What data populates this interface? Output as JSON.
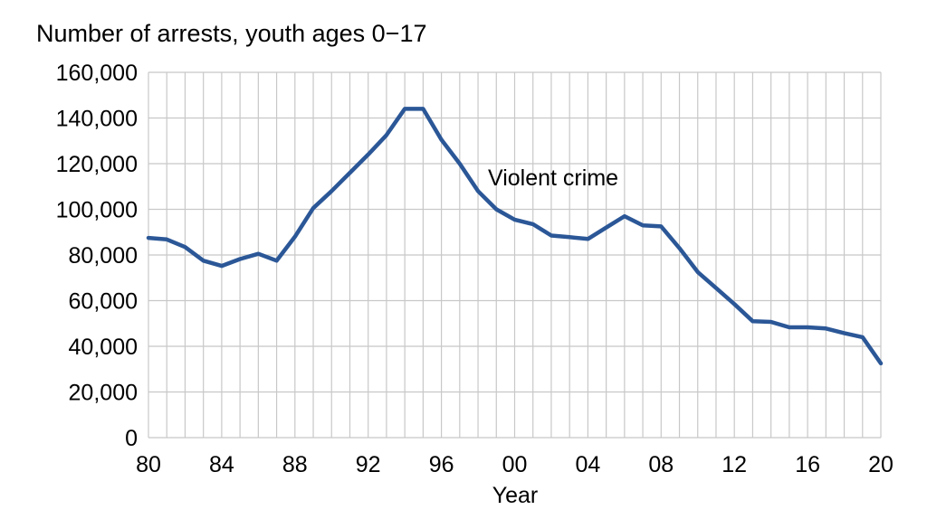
{
  "chart_data": {
    "type": "line",
    "title": "",
    "ylabel": "Number of arrests, youth ages 0−17",
    "xlabel": "Year",
    "xlim": [
      1980,
      2020
    ],
    "ylim": [
      0,
      160000
    ],
    "grid": true,
    "x_ticks": [
      {
        "value": 1980,
        "label": "80"
      },
      {
        "value": 1984,
        "label": "84"
      },
      {
        "value": 1988,
        "label": "88"
      },
      {
        "value": 1992,
        "label": "92"
      },
      {
        "value": 1996,
        "label": "96"
      },
      {
        "value": 2000,
        "label": "00"
      },
      {
        "value": 2004,
        "label": "04"
      },
      {
        "value": 2008,
        "label": "08"
      },
      {
        "value": 2012,
        "label": "12"
      },
      {
        "value": 2016,
        "label": "16"
      },
      {
        "value": 2020,
        "label": "20"
      }
    ],
    "y_ticks": [
      {
        "value": 0,
        "label": "0"
      },
      {
        "value": 20000,
        "label": "20,000"
      },
      {
        "value": 40000,
        "label": "40,000"
      },
      {
        "value": 60000,
        "label": "60,000"
      },
      {
        "value": 80000,
        "label": "80,000"
      },
      {
        "value": 100000,
        "label": "100,000"
      },
      {
        "value": 120000,
        "label": "120,000"
      },
      {
        "value": 140000,
        "label": "140,000"
      },
      {
        "value": 160000,
        "label": "160,000"
      }
    ],
    "series": [
      {
        "name": "Violent crime",
        "color": "#2b5797",
        "x": [
          1980,
          1981,
          1982,
          1983,
          1984,
          1985,
          1986,
          1987,
          1988,
          1989,
          1990,
          1991,
          1992,
          1993,
          1994,
          1995,
          1996,
          1997,
          1998,
          1999,
          2000,
          2001,
          2002,
          2003,
          2004,
          2005,
          2006,
          2007,
          2008,
          2009,
          2010,
          2011,
          2012,
          2013,
          2014,
          2015,
          2016,
          2017,
          2018,
          2019,
          2020
        ],
        "values": [
          87500,
          86800,
          83500,
          77500,
          75200,
          78200,
          80500,
          77500,
          88000,
          100500,
          108000,
          116000,
          124000,
          132500,
          144000,
          144000,
          130500,
          120000,
          108000,
          100000,
          95500,
          93500,
          88500,
          87800,
          87000,
          92000,
          97000,
          93000,
          92500,
          83000,
          72500,
          65500,
          58500,
          51000,
          50700,
          48300,
          48300,
          47800,
          45800,
          44000,
          32500
        ]
      }
    ]
  }
}
